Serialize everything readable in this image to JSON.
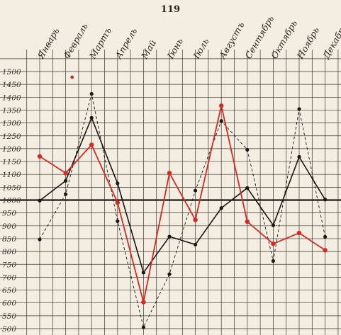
{
  "page": {
    "number": "119"
  },
  "chart_data": {
    "type": "line",
    "title": "",
    "xlabel": "",
    "ylabel": "",
    "categories": [
      "Январь",
      "Февраль",
      "Мартъ",
      "Апрель",
      "Май",
      "Іюнь",
      "Іюль",
      "Августъ",
      "Сентябрь",
      "Октябрь",
      "Ноябрь",
      "Декабрь"
    ],
    "y_ticks": [
      500,
      550,
      600,
      650,
      700,
      750,
      800,
      850,
      900,
      950,
      1000,
      1050,
      1100,
      1150,
      1200,
      1250,
      1300,
      1350,
      1400,
      1450,
      1500
    ],
    "y_tick_labels": [
      "500",
      "550",
      "600",
      "650",
      "700",
      "750",
      "800",
      "850",
      "900",
      "950",
      "1000",
      "1050",
      "1100",
      "1150",
      "1200",
      "1250",
      "1300",
      "1350",
      "1400",
      "1450",
      "1500"
    ],
    "ylim": [
      500,
      1500
    ],
    "reference_line": 1000,
    "grid": true,
    "series": [
      {
        "style": "solid",
        "color": "#1a1714",
        "values": [
          998,
          1075,
          1320,
          1065,
          718,
          858,
          827,
          969,
          1047,
          902,
          1168,
          1002
        ]
      },
      {
        "style": "dashed",
        "color": "#1a1714",
        "values": [
          847,
          1023,
          1413,
          918,
          505,
          712,
          1037,
          1308,
          1196,
          763,
          1354,
          857
        ]
      },
      {
        "style": "solid",
        "color": "#d22b22",
        "values": [
          1170,
          1105,
          1215,
          990,
          603,
          1105,
          923,
          1367,
          916,
          830,
          872,
          805
        ]
      }
    ],
    "stray_point": {
      "x_position": 1.25,
      "value": 1478,
      "color": "#c0332a"
    },
    "colors": {
      "paper": "#f4eee2",
      "ink": "#1a1714",
      "red": "#d22b22"
    }
  }
}
